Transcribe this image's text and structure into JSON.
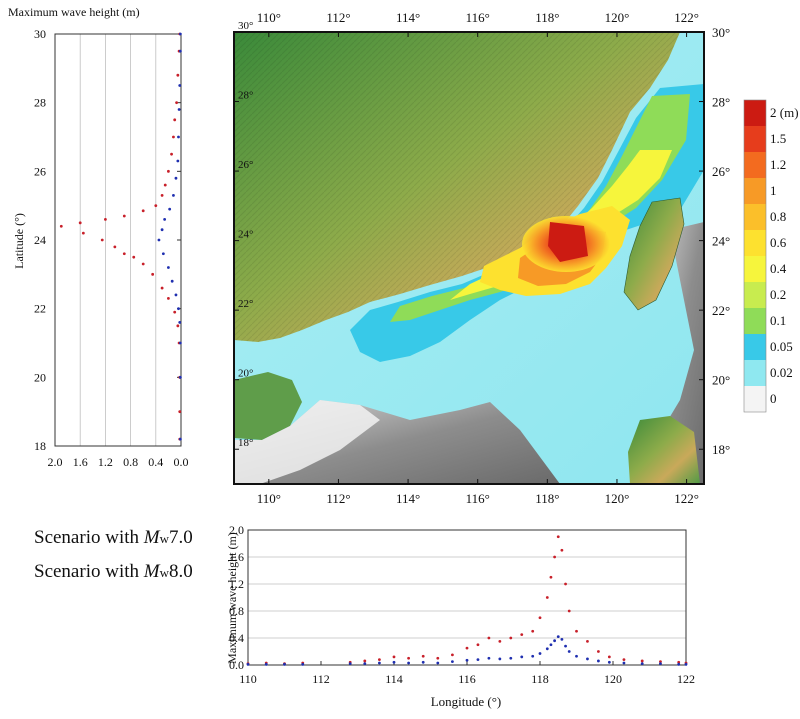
{
  "chart_data": [
    {
      "type": "scatter",
      "title": "Maximum wave height (m)",
      "xlabel": "",
      "ylabel": "Latitude (°)",
      "x_reversed": true,
      "xlim": [
        0.0,
        2.0
      ],
      "ylim": [
        18,
        30
      ],
      "x_ticks": [
        "2.0",
        "1.6",
        "1.2",
        "0.8",
        "0.4",
        "0.0"
      ],
      "x_tick_values": [
        2.0,
        1.6,
        1.2,
        0.8,
        0.4,
        0.0
      ],
      "y_ticks": [
        "18",
        "20",
        "22",
        "24",
        "26",
        "28",
        "30"
      ],
      "y_tick_values": [
        18,
        20,
        22,
        24,
        26,
        28,
        30
      ],
      "grid": "vertical",
      "series": [
        {
          "name": "Scenario with Mw8.0",
          "color": "#c8202a",
          "points": [
            [
              0.02,
              18.2
            ],
            [
              0.02,
              19.0
            ],
            [
              0.02,
              20.0
            ],
            [
              0.03,
              21.0
            ],
            [
              0.05,
              21.5
            ],
            [
              0.1,
              21.9
            ],
            [
              0.2,
              22.3
            ],
            [
              0.3,
              22.6
            ],
            [
              0.45,
              23.0
            ],
            [
              0.6,
              23.3
            ],
            [
              0.75,
              23.5
            ],
            [
              0.9,
              23.6
            ],
            [
              1.05,
              23.8
            ],
            [
              1.25,
              24.0
            ],
            [
              1.55,
              24.2
            ],
            [
              1.9,
              24.4
            ],
            [
              1.6,
              24.5
            ],
            [
              1.2,
              24.6
            ],
            [
              0.9,
              24.7
            ],
            [
              0.6,
              24.85
            ],
            [
              0.4,
              25.0
            ],
            [
              0.3,
              25.3
            ],
            [
              0.25,
              25.6
            ],
            [
              0.2,
              26.0
            ],
            [
              0.15,
              26.5
            ],
            [
              0.12,
              27.0
            ],
            [
              0.1,
              27.5
            ],
            [
              0.07,
              28.0
            ],
            [
              0.05,
              28.8
            ],
            [
              0.03,
              29.5
            ],
            [
              0.02,
              30.0
            ]
          ]
        },
        {
          "name": "Scenario with Mw7.0",
          "color": "#1f2fb0",
          "points": [
            [
              0.01,
              18.2
            ],
            [
              0.01,
              20.0
            ],
            [
              0.01,
              21.0
            ],
            [
              0.02,
              21.6
            ],
            [
              0.04,
              22.0
            ],
            [
              0.08,
              22.4
            ],
            [
              0.14,
              22.8
            ],
            [
              0.2,
              23.2
            ],
            [
              0.28,
              23.6
            ],
            [
              0.35,
              24.0
            ],
            [
              0.3,
              24.3
            ],
            [
              0.26,
              24.6
            ],
            [
              0.18,
              24.9
            ],
            [
              0.12,
              25.3
            ],
            [
              0.08,
              25.8
            ],
            [
              0.05,
              26.3
            ],
            [
              0.04,
              27.0
            ],
            [
              0.03,
              27.8
            ],
            [
              0.02,
              28.5
            ],
            [
              0.01,
              29.5
            ],
            [
              0.01,
              30.0
            ]
          ]
        }
      ]
    },
    {
      "type": "heatmap",
      "xlim": [
        109,
        122.5
      ],
      "ylim": [
        17,
        30
      ],
      "x_ticks": [
        "110°",
        "112°",
        "114°",
        "116°",
        "118°",
        "120°",
        "122°"
      ],
      "x_tick_values": [
        110,
        112,
        114,
        116,
        118,
        120,
        122
      ],
      "y_ticks": [
        "18°",
        "20°",
        "22°",
        "24°",
        "26°",
        "28°",
        "30°"
      ],
      "y_tick_values": [
        18,
        20,
        22,
        24,
        26,
        28,
        30
      ],
      "colorbar": {
        "labels": [
          "2 (m)",
          "1.5",
          "1.2",
          "1",
          "0.8",
          "0.6",
          "0.4",
          "0.2",
          "0.1",
          "0.05",
          "0.02",
          "0"
        ],
        "colors": [
          "#cc1b12",
          "#e63d1c",
          "#f36b1f",
          "#f79a26",
          "#fbbf2a",
          "#fde12f",
          "#f6f53c",
          "#c8ec4f",
          "#8fdc58",
          "#38c9e8",
          "#8fe8f0",
          "#f4f4f4"
        ]
      }
    },
    {
      "type": "scatter",
      "xlabel": "Longitude (°)",
      "ylabel": "Maximum wave height (m)",
      "xlim": [
        110,
        122
      ],
      "ylim": [
        0.0,
        2.0
      ],
      "x_ticks": [
        "110",
        "112",
        "114",
        "116",
        "118",
        "120",
        "122"
      ],
      "x_tick_values": [
        110,
        112,
        114,
        116,
        118,
        120,
        122
      ],
      "y_ticks": [
        "0.0",
        "0.4",
        "0.8",
        "1.2",
        "1.6",
        "2.0"
      ],
      "y_tick_values": [
        0.0,
        0.4,
        0.8,
        1.2,
        1.6,
        2.0
      ],
      "grid": "horizontal",
      "legend": {
        "placement": "left",
        "entries": [
          {
            "prefix": "Scenario with ",
            "italic": "M",
            "sub": "w",
            "suffix": "7.0"
          },
          {
            "prefix": "Scenario with ",
            "italic": "M",
            "sub": "w",
            "suffix": "8.0"
          }
        ]
      },
      "series": [
        {
          "name": "Scenario with Mw8.0",
          "color": "#c8202a",
          "points": [
            [
              110.0,
              0.02
            ],
            [
              110.5,
              0.03
            ],
            [
              111.0,
              0.02
            ],
            [
              111.5,
              0.03
            ],
            [
              112.8,
              0.04
            ],
            [
              113.2,
              0.06
            ],
            [
              113.6,
              0.08
            ],
            [
              114.0,
              0.12
            ],
            [
              114.4,
              0.1
            ],
            [
              114.8,
              0.13
            ],
            [
              115.2,
              0.1
            ],
            [
              115.6,
              0.15
            ],
            [
              116.0,
              0.25
            ],
            [
              116.3,
              0.3
            ],
            [
              116.6,
              0.4
            ],
            [
              116.9,
              0.35
            ],
            [
              117.2,
              0.4
            ],
            [
              117.5,
              0.45
            ],
            [
              117.8,
              0.5
            ],
            [
              118.0,
              0.7
            ],
            [
              118.2,
              1.0
            ],
            [
              118.3,
              1.3
            ],
            [
              118.4,
              1.6
            ],
            [
              118.5,
              1.9
            ],
            [
              118.6,
              1.7
            ],
            [
              118.7,
              1.2
            ],
            [
              118.8,
              0.8
            ],
            [
              119.0,
              0.5
            ],
            [
              119.3,
              0.35
            ],
            [
              119.6,
              0.2
            ],
            [
              119.9,
              0.12
            ],
            [
              120.3,
              0.08
            ],
            [
              120.8,
              0.06
            ],
            [
              121.3,
              0.05
            ],
            [
              121.8,
              0.04
            ],
            [
              122.0,
              0.03
            ]
          ]
        },
        {
          "name": "Scenario with Mw7.0",
          "color": "#1f2fb0",
          "points": [
            [
              110.0,
              0.01
            ],
            [
              110.5,
              0.01
            ],
            [
              111.0,
              0.01
            ],
            [
              111.5,
              0.01
            ],
            [
              112.8,
              0.02
            ],
            [
              113.2,
              0.02
            ],
            [
              113.6,
              0.03
            ],
            [
              114.0,
              0.04
            ],
            [
              114.4,
              0.03
            ],
            [
              114.8,
              0.04
            ],
            [
              115.2,
              0.03
            ],
            [
              115.6,
              0.05
            ],
            [
              116.0,
              0.07
            ],
            [
              116.3,
              0.08
            ],
            [
              116.6,
              0.1
            ],
            [
              116.9,
              0.09
            ],
            [
              117.2,
              0.1
            ],
            [
              117.5,
              0.12
            ],
            [
              117.8,
              0.13
            ],
            [
              118.0,
              0.17
            ],
            [
              118.2,
              0.24
            ],
            [
              118.3,
              0.3
            ],
            [
              118.4,
              0.36
            ],
            [
              118.5,
              0.42
            ],
            [
              118.6,
              0.38
            ],
            [
              118.7,
              0.28
            ],
            [
              118.8,
              0.2
            ],
            [
              119.0,
              0.13
            ],
            [
              119.3,
              0.09
            ],
            [
              119.6,
              0.06
            ],
            [
              119.9,
              0.04
            ],
            [
              120.3,
              0.03
            ],
            [
              120.8,
              0.02
            ],
            [
              121.3,
              0.02
            ],
            [
              121.8,
              0.01
            ],
            [
              122.0,
              0.01
            ]
          ]
        }
      ]
    }
  ]
}
